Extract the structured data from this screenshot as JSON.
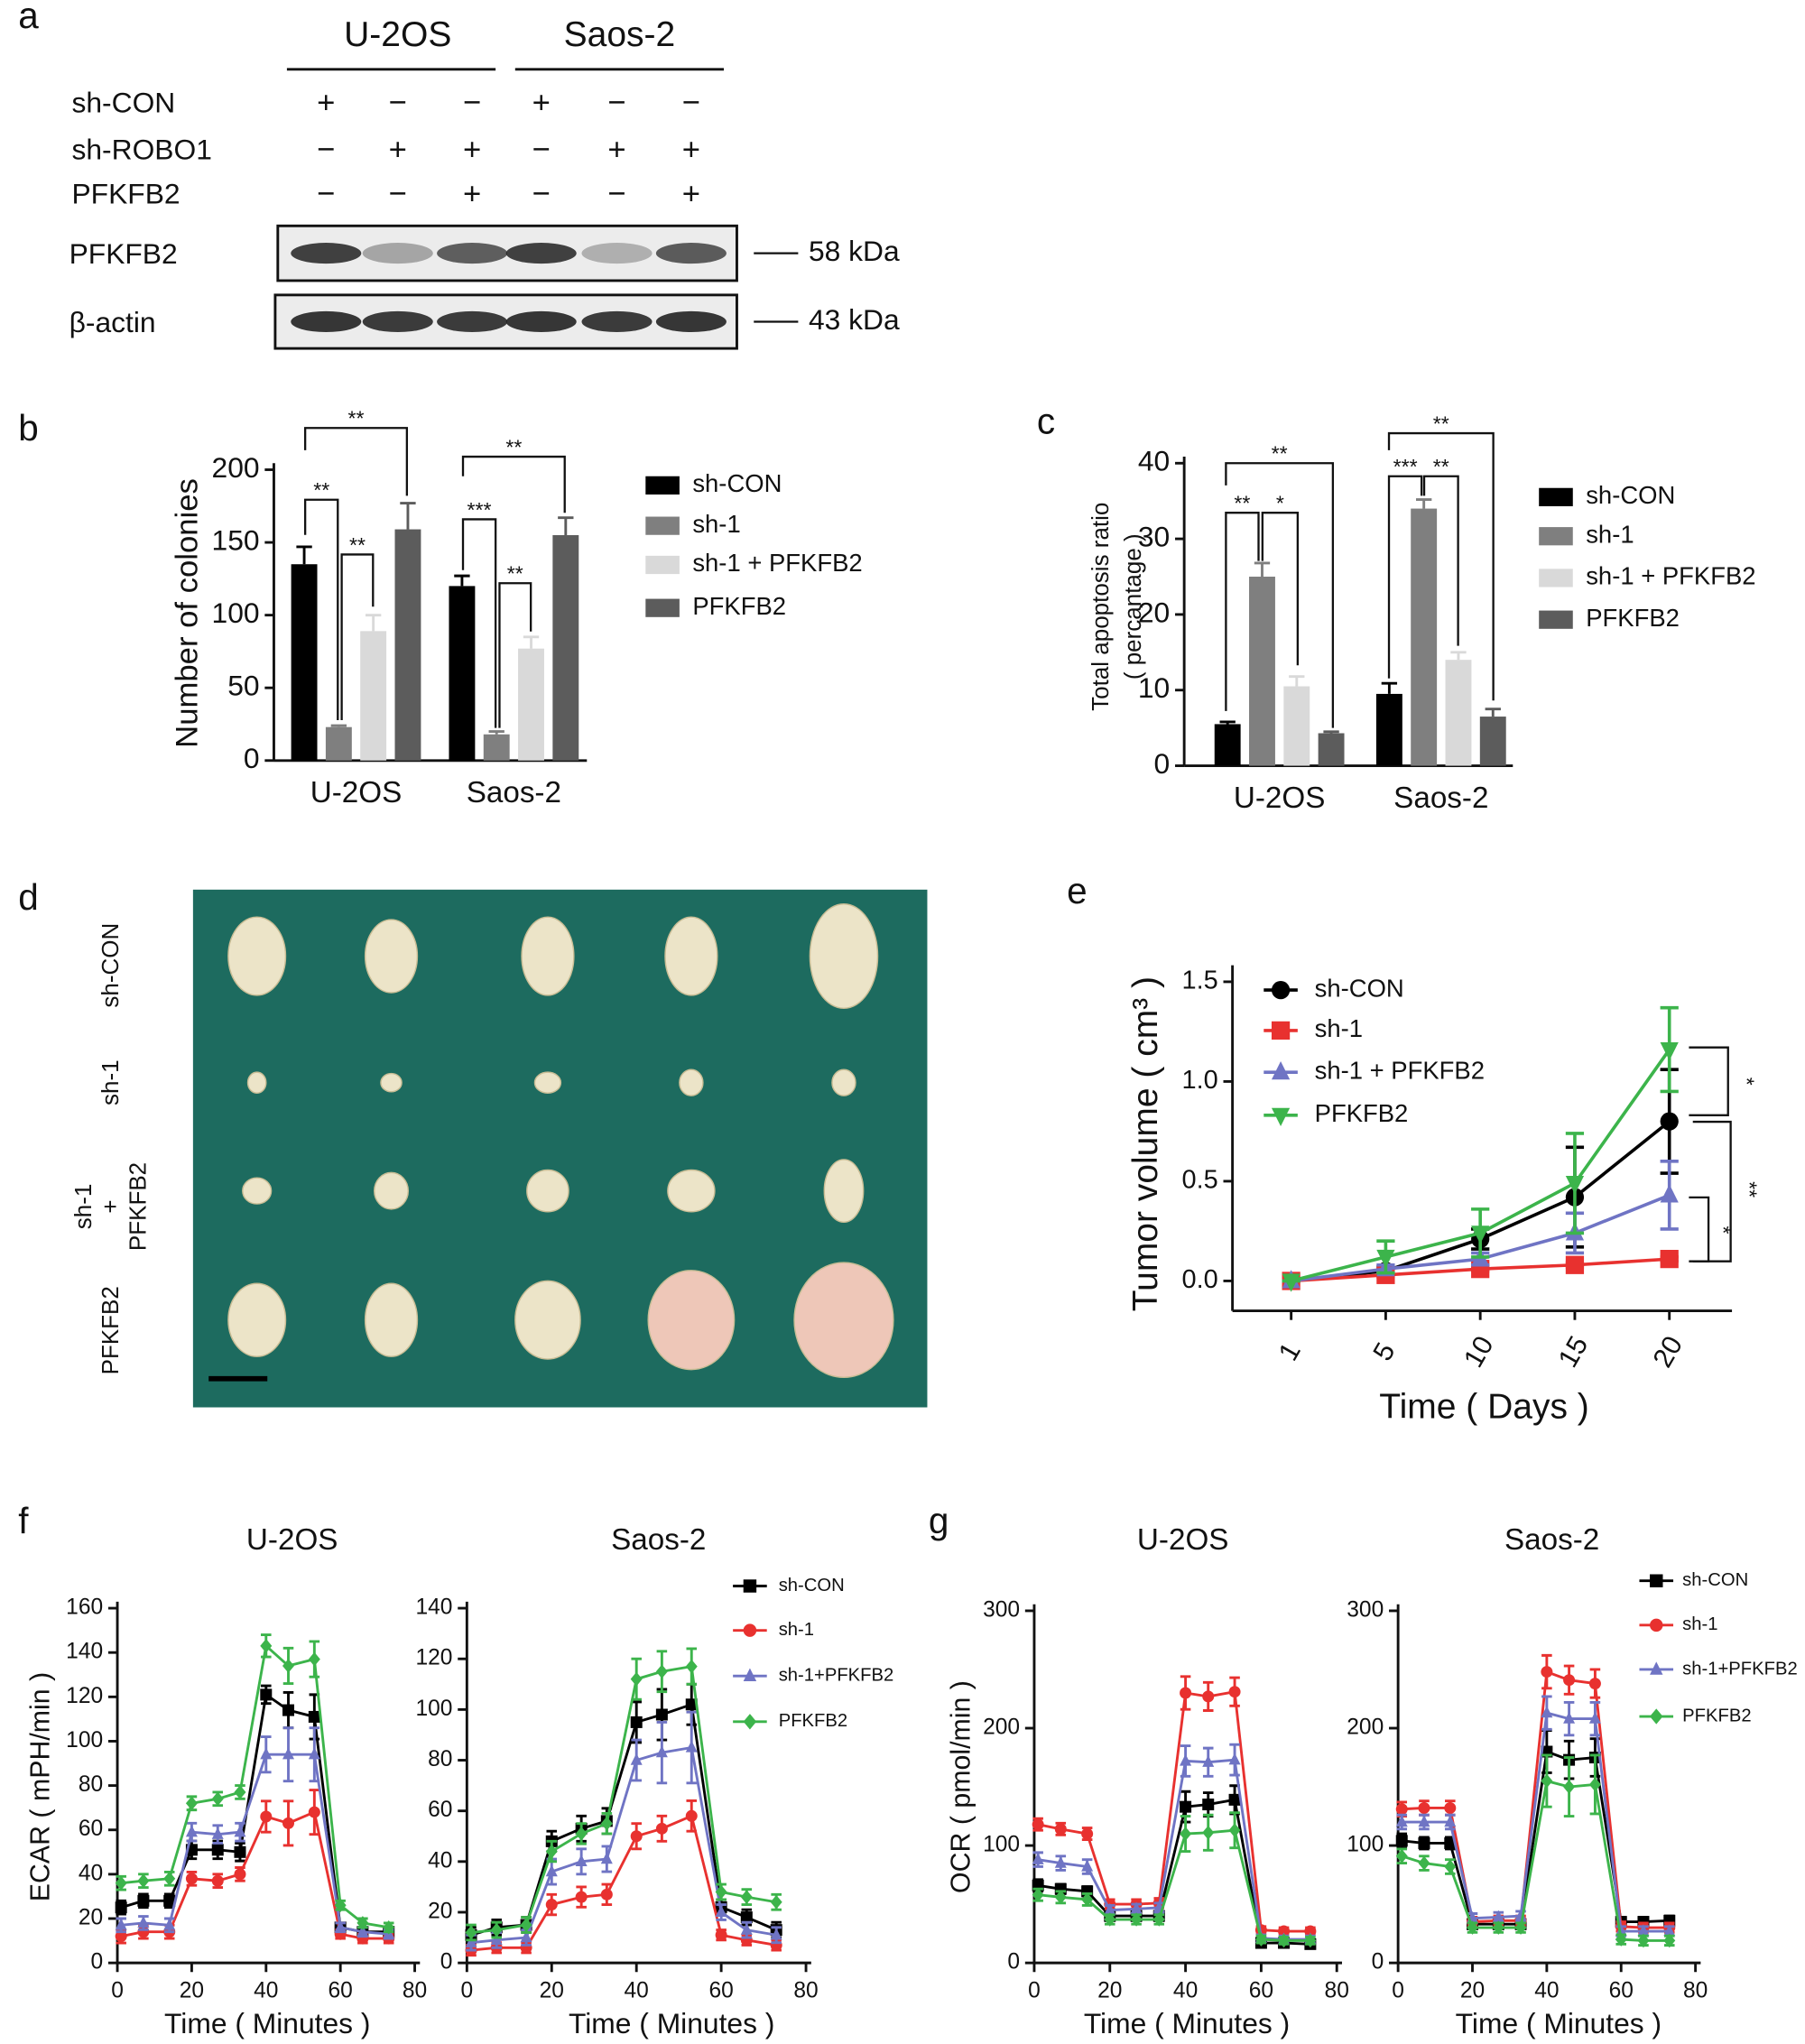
{
  "panel_labels": [
    "a",
    "b",
    "c",
    "d",
    "e",
    "f",
    "g"
  ],
  "western_blot": {
    "groups": [
      "U-2OS",
      "Saos-2"
    ],
    "conditions": [
      {
        "label": "sh-CON",
        "signs": [
          "+",
          "−",
          "−",
          "+",
          "−",
          "−"
        ]
      },
      {
        "label": "sh-ROBO1",
        "signs": [
          "−",
          "+",
          "+",
          "−",
          "+",
          "+"
        ]
      },
      {
        "label": "PFKFB2",
        "signs": [
          "−",
          "−",
          "+",
          "−",
          "−",
          "+"
        ]
      }
    ],
    "bands": [
      {
        "label": "PFKFB2",
        "size": "58 kDa"
      },
      {
        "label": "β-actin",
        "size": "43 kDa"
      }
    ]
  },
  "tumor_photo": {
    "row_labels": [
      [
        "sh-CON"
      ],
      [
        "sh-1"
      ],
      [
        "sh-1",
        "+",
        "PFKFB2"
      ],
      [
        "PFKFB2"
      ]
    ]
  },
  "chart_data": [
    {
      "type": "bar",
      "ylabel": [
        "Number of colonies"
      ],
      "categories": [
        "U-2OS",
        "Saos-2"
      ],
      "series": [
        {
          "name": "sh-CON",
          "color": "#000000",
          "values": [
            135,
            120
          ],
          "errors": [
            12,
            7
          ]
        },
        {
          "name": "sh-1",
          "color": "#7f7f7f",
          "values": [
            23,
            18
          ],
          "errors": [
            1,
            2
          ]
        },
        {
          "name": "sh-1 + PFKFB2",
          "color": "#d9d9d9",
          "values": [
            89,
            77
          ],
          "errors": [
            11,
            8
          ]
        },
        {
          "name": "PFKFB2",
          "color": "#5c5c5c",
          "values": [
            159,
            155
          ],
          "errors": [
            18,
            12
          ]
        }
      ],
      "ylim": [
        0,
        200
      ],
      "yticks": [
        0,
        50,
        100,
        150,
        200
      ],
      "legend": "right",
      "annotations": [
        "**",
        "**",
        "**",
        "***",
        "**",
        "**"
      ]
    },
    {
      "type": "bar",
      "ylabel": [
        "Total apoptosis ratio",
        "( percantage )"
      ],
      "categories": [
        "U-2OS",
        "Saos-2"
      ],
      "series": [
        {
          "name": "sh-CON",
          "color": "#000000",
          "values": [
            5.5,
            9.5
          ],
          "errors": [
            0.3,
            1.4
          ]
        },
        {
          "name": "sh-1",
          "color": "#7f7f7f",
          "values": [
            25,
            34
          ],
          "errors": [
            1.8,
            1.2
          ]
        },
        {
          "name": "sh-1 + PFKFB2",
          "color": "#d9d9d9",
          "values": [
            10.5,
            14
          ],
          "errors": [
            1.3,
            1
          ]
        },
        {
          "name": "PFKFB2",
          "color": "#5c5c5c",
          "values": [
            4.3,
            6.5
          ],
          "errors": [
            0.2,
            1
          ]
        }
      ],
      "ylim": [
        0,
        40
      ],
      "yticks": [
        0,
        10,
        20,
        30,
        40
      ],
      "legend": "right",
      "annotations": [
        "**",
        "*",
        "**",
        "***",
        "**",
        "**"
      ]
    },
    {
      "type": "line",
      "ylabel": "Tumor volume ( cm³ )",
      "xlabel": "Time ( Days )",
      "categories": [
        "1",
        "5",
        "10",
        "15",
        "20"
      ],
      "series": [
        {
          "name": "sh-CON",
          "color": "#000000",
          "marker": "circle",
          "values": [
            0,
            0.05,
            0.21,
            0.42,
            0.8
          ],
          "errors": [
            0,
            0.02,
            0.05,
            0.25,
            0.26
          ]
        },
        {
          "name": "sh-1",
          "color": "#e8312f",
          "marker": "square",
          "values": [
            0,
            0.03,
            0.06,
            0.08,
            0.11
          ],
          "errors": [
            0,
            0.01,
            0.01,
            0.01,
            0.01
          ]
        },
        {
          "name": "sh-1 + PFKFB2",
          "color": "#6f74c4",
          "marker": "triangle",
          "values": [
            0,
            0.06,
            0.11,
            0.24,
            0.43
          ],
          "errors": [
            0,
            0.02,
            0.03,
            0.1,
            0.17
          ]
        },
        {
          "name": "PFKFB2",
          "color": "#3cb44b",
          "marker": "triangle-down",
          "values": [
            0,
            0.12,
            0.24,
            0.49,
            1.16
          ],
          "errors": [
            0,
            0.08,
            0.12,
            0.25,
            0.21
          ]
        }
      ],
      "ylim": [
        -0.15,
        1.55
      ],
      "yticks": [
        {
          "value": 0,
          "label": "0.0"
        },
        0.5,
        {
          "value": 1,
          "label": "1.0"
        },
        1.5
      ],
      "legend": "upper left",
      "annotations": [
        "*",
        "*",
        "**"
      ]
    },
    {
      "type": "line",
      "title": "U-2OS",
      "ylabel": "ECAR ( mPH/min )",
      "xlabel": "Time ( Minutes )",
      "x": [
        1,
        7,
        14,
        20,
        27,
        33,
        40,
        46,
        53,
        60,
        66,
        73
      ],
      "series": [
        {
          "color": "#000000",
          "marker": "square",
          "values": [
            25,
            28,
            28,
            51,
            51,
            50,
            121,
            114,
            111,
            16,
            14,
            14
          ],
          "errors": [
            3,
            3,
            3,
            4,
            4,
            4,
            4,
            8,
            10,
            2,
            2,
            2
          ]
        },
        {
          "color": "#e8312f",
          "marker": "circle",
          "values": [
            12,
            14,
            14,
            38,
            37,
            40,
            66,
            63,
            68,
            13,
            11,
            11
          ],
          "errors": [
            3,
            3,
            3,
            3,
            3,
            3,
            7,
            10,
            10,
            2,
            2,
            2
          ]
        },
        {
          "color": "#6f74c4",
          "marker": "triangle",
          "values": [
            17,
            18,
            17,
            59,
            58,
            59,
            94,
            94,
            94,
            16,
            14,
            13
          ],
          "errors": [
            3,
            3,
            3,
            4,
            4,
            4,
            8,
            12,
            12,
            2,
            2,
            2
          ]
        },
        {
          "color": "#3cb44b",
          "marker": "diamond",
          "values": [
            36,
            37,
            38,
            72,
            74,
            77,
            143,
            134,
            137,
            26,
            18,
            16
          ],
          "errors": [
            3,
            3,
            3,
            3,
            3,
            3,
            5,
            8,
            8,
            2,
            2,
            2
          ]
        }
      ],
      "xlim": [
        0,
        80
      ],
      "xticks": [
        0,
        20,
        40,
        60,
        80
      ],
      "ylim": [
        0,
        160
      ],
      "yticks": [
        0,
        20,
        40,
        60,
        80,
        100,
        120,
        140,
        160
      ]
    },
    {
      "type": "line",
      "title": "Saos-2",
      "xlabel": "Time ( Minutes )",
      "x": [
        1,
        7,
        14,
        20,
        27,
        33,
        40,
        46,
        53,
        60,
        66,
        73
      ],
      "series": [
        {
          "name": "sh-CON",
          "color": "#000000",
          "marker": "square",
          "values": [
            11,
            14,
            15,
            48,
            53,
            56,
            95,
            98,
            102,
            22,
            18,
            13
          ],
          "errors": [
            3,
            3,
            3,
            4,
            5,
            5,
            8,
            10,
            8,
            3,
            3,
            3
          ]
        },
        {
          "name": "sh-1",
          "color": "#e8312f",
          "marker": "circle",
          "values": [
            5,
            6,
            6,
            23,
            26,
            27,
            50,
            53,
            58,
            11,
            9,
            7
          ],
          "errors": [
            2,
            2,
            2,
            4,
            4,
            4,
            5,
            5,
            6,
            2,
            2,
            2
          ]
        },
        {
          "name": "sh-1+PFKFB2",
          "color": "#6f74c4",
          "marker": "triangle",
          "values": [
            8,
            9,
            10,
            36,
            40,
            41,
            80,
            83,
            85,
            20,
            13,
            11
          ],
          "errors": [
            3,
            3,
            3,
            5,
            5,
            5,
            8,
            12,
            14,
            3,
            3,
            3
          ]
        },
        {
          "name": "PFKFB2",
          "color": "#3cb44b",
          "marker": "diamond",
          "values": [
            12,
            13,
            15,
            44,
            51,
            55,
            112,
            115,
            117,
            28,
            26,
            24
          ],
          "errors": [
            3,
            3,
            3,
            4,
            4,
            4,
            8,
            8,
            7,
            3,
            3,
            3
          ]
        }
      ],
      "xlim": [
        0,
        80
      ],
      "xticks": [
        0,
        20,
        40,
        60,
        80
      ],
      "ylim": [
        0,
        140
      ],
      "yticks": [
        0,
        20,
        40,
        60,
        80,
        100,
        120,
        140
      ],
      "legend": "right"
    },
    {
      "type": "line",
      "title": "U-2OS",
      "ylabel": "OCR ( pmol/min )",
      "xlabel": "Time ( Minutes )",
      "x": [
        1,
        7,
        14,
        20,
        27,
        33,
        40,
        46,
        53,
        60,
        66,
        73
      ],
      "series": [
        {
          "color": "#000000",
          "marker": "square",
          "values": [
            66,
            63,
            61,
            40,
            40,
            40,
            133,
            135,
            139,
            17,
            17,
            16
          ],
          "errors": [
            5,
            4,
            4,
            4,
            4,
            4,
            13,
            10,
            12,
            3,
            3,
            3
          ]
        },
        {
          "color": "#e8312f",
          "marker": "circle",
          "values": [
            118,
            114,
            110,
            50,
            50,
            51,
            230,
            227,
            231,
            28,
            27,
            27
          ],
          "errors": [
            5,
            5,
            5,
            4,
            4,
            4,
            14,
            12,
            12,
            3,
            3,
            3
          ]
        },
        {
          "color": "#6f74c4",
          "marker": "triangle",
          "values": [
            88,
            85,
            82,
            45,
            46,
            47,
            172,
            171,
            173,
            21,
            20,
            20
          ],
          "errors": [
            6,
            6,
            6,
            4,
            4,
            4,
            13,
            12,
            13,
            3,
            3,
            3
          ]
        },
        {
          "color": "#3cb44b",
          "marker": "diamond",
          "values": [
            58,
            56,
            54,
            37,
            37,
            37,
            110,
            111,
            113,
            20,
            19,
            19
          ],
          "errors": [
            5,
            5,
            5,
            4,
            4,
            4,
            15,
            15,
            15,
            3,
            3,
            3
          ]
        }
      ],
      "xlim": [
        0,
        80
      ],
      "xticks": [
        0,
        20,
        40,
        60,
        80
      ],
      "ylim": [
        0,
        300
      ],
      "yticks": [
        0,
        100,
        200,
        300
      ]
    },
    {
      "type": "line",
      "title": "Saos-2",
      "xlabel": "Time ( Minutes )",
      "x": [
        1,
        7,
        14,
        20,
        27,
        33,
        40,
        46,
        53,
        60,
        66,
        73
      ],
      "series": [
        {
          "name": "sh-CON",
          "color": "#000000",
          "marker": "square",
          "values": [
            104,
            102,
            102,
            33,
            33,
            33,
            180,
            173,
            175,
            35,
            35,
            36
          ],
          "errors": [
            6,
            5,
            5,
            4,
            4,
            4,
            18,
            16,
            16,
            4,
            4,
            4
          ]
        },
        {
          "name": "sh-1",
          "color": "#e8312f",
          "marker": "circle",
          "values": [
            131,
            132,
            132,
            35,
            36,
            36,
            248,
            241,
            238,
            31,
            30,
            30
          ],
          "errors": [
            6,
            6,
            6,
            4,
            4,
            4,
            14,
            12,
            12,
            4,
            4,
            4
          ]
        },
        {
          "name": "sh-1+PFKFB2",
          "color": "#6f74c4",
          "marker": "triangle",
          "values": [
            120,
            120,
            120,
            38,
            39,
            40,
            213,
            208,
            208,
            27,
            27,
            27
          ],
          "errors": [
            6,
            6,
            6,
            4,
            4,
            4,
            14,
            14,
            14,
            4,
            4,
            4
          ]
        },
        {
          "name": "PFKFB2",
          "color": "#3cb44b",
          "marker": "diamond",
          "values": [
            91,
            85,
            82,
            30,
            30,
            30,
            155,
            150,
            152,
            20,
            19,
            19
          ],
          "errors": [
            6,
            6,
            6,
            4,
            4,
            4,
            22,
            25,
            25,
            4,
            4,
            4
          ]
        }
      ],
      "xlim": [
        0,
        80
      ],
      "xticks": [
        0,
        20,
        40,
        60,
        80
      ],
      "ylim": [
        0,
        300
      ],
      "yticks": [
        0,
        100,
        200,
        300
      ],
      "legend": "right"
    }
  ]
}
